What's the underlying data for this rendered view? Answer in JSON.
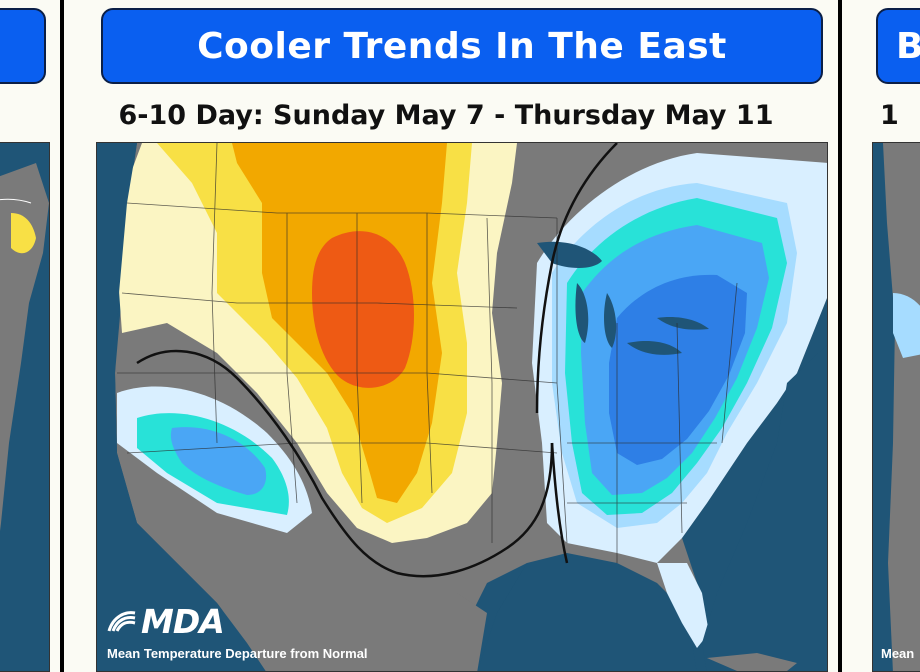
{
  "panels": {
    "left": {
      "title": "",
      "subtitle": ""
    },
    "center": {
      "title": "Cooler Trends In The East",
      "subtitle": "6-10 Day: Sunday May 7 - Thursday May 11",
      "brand": "MDA",
      "caption": "Mean Temperature Departure from Normal"
    },
    "right": {
      "title": "B",
      "subtitle": "1",
      "brand": "",
      "caption": "Mean"
    }
  },
  "map_colors": {
    "ocean": "#1f5577",
    "neutral": "#7a7a7a",
    "warm_1": "#fbf5c3",
    "warm_2": "#f8e045",
    "warm_3": "#f2a800",
    "warm_4": "#ee5a14",
    "cool_1": "#d9efff",
    "cool_2": "#a6dcff",
    "cool_3": "#28e2d8",
    "cool_4": "#4aa6f5",
    "cool_5": "#2e7fe6",
    "title_bar": "#0a5ff0"
  }
}
